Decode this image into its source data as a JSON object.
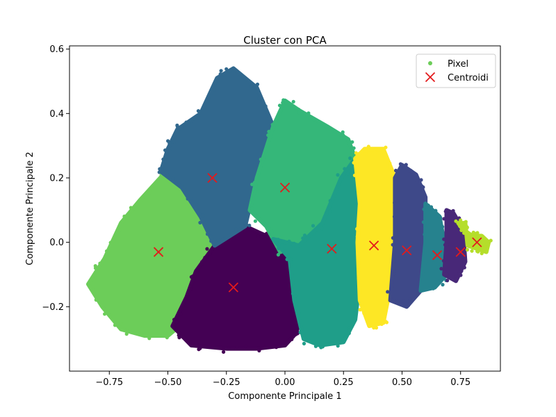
{
  "chart_data": {
    "type": "scatter",
    "title": "Cluster con PCA",
    "xlabel": "Componente Principale 1",
    "ylabel": "Componente Principale 2",
    "xlim": [
      -0.92,
      0.92
    ],
    "ylim": [
      -0.4,
      0.61
    ],
    "xticks": [
      -0.75,
      -0.5,
      -0.25,
      0.0,
      0.25,
      0.5,
      0.75
    ],
    "xtick_labels": [
      "−0.75",
      "−0.50",
      "−0.25",
      "0.00",
      "0.25",
      "0.50",
      "0.75"
    ],
    "yticks": [
      -0.2,
      0.0,
      0.2,
      0.4,
      0.6
    ],
    "ytick_labels": [
      "−0.2",
      "0.0",
      "0.2",
      "0.4",
      "0.6"
    ],
    "grid": false,
    "legend": {
      "placement": "upper-right",
      "entries": [
        {
          "label": "Pixel",
          "marker": "dot",
          "color": "#6ccd59"
        },
        {
          "label": "Centroidi",
          "marker": "x",
          "color": "#e31a1c"
        }
      ]
    },
    "clusters": [
      {
        "color": "#6ccd59",
        "polygon": [
          [
            -0.84,
            -0.13
          ],
          [
            -0.78,
            -0.2
          ],
          [
            -0.7,
            -0.27
          ],
          [
            -0.6,
            -0.29
          ],
          [
            -0.5,
            -0.29
          ],
          [
            -0.45,
            -0.26
          ],
          [
            -0.4,
            -0.17
          ],
          [
            -0.3,
            -0.01
          ],
          [
            -0.36,
            0.08
          ],
          [
            -0.44,
            0.17
          ],
          [
            -0.52,
            0.21
          ],
          [
            -0.62,
            0.13
          ],
          [
            -0.7,
            0.06
          ],
          [
            -0.77,
            -0.05
          ]
        ]
      },
      {
        "color": "#440154",
        "polygon": [
          [
            -0.48,
            -0.26
          ],
          [
            -0.42,
            -0.17
          ],
          [
            -0.38,
            -0.09
          ],
          [
            -0.3,
            -0.01
          ],
          [
            -0.24,
            0.03
          ],
          [
            -0.17,
            0.05
          ],
          [
            -0.05,
            0.01
          ],
          [
            0.03,
            -0.07
          ],
          [
            0.07,
            -0.18
          ],
          [
            0.05,
            -0.28
          ],
          [
            0.0,
            -0.32
          ],
          [
            -0.12,
            -0.33
          ],
          [
            -0.25,
            -0.33
          ],
          [
            -0.4,
            -0.32
          ]
        ]
      },
      {
        "color": "#31688e",
        "polygon": [
          [
            -0.53,
            0.22
          ],
          [
            -0.5,
            0.29
          ],
          [
            -0.46,
            0.35
          ],
          [
            -0.36,
            0.4
          ],
          [
            -0.29,
            0.51
          ],
          [
            -0.22,
            0.54
          ],
          [
            -0.12,
            0.48
          ],
          [
            -0.05,
            0.36
          ],
          [
            -0.12,
            0.2
          ],
          [
            -0.17,
            0.05
          ],
          [
            -0.3,
            -0.01
          ],
          [
            -0.36,
            0.08
          ],
          [
            -0.44,
            0.17
          ]
        ]
      },
      {
        "color": "#35b779",
        "polygon": [
          [
            -0.05,
            0.36
          ],
          [
            0.0,
            0.44
          ],
          [
            0.06,
            0.41
          ],
          [
            0.18,
            0.36
          ],
          [
            0.27,
            0.32
          ],
          [
            0.3,
            0.26
          ],
          [
            0.24,
            0.14
          ],
          [
            0.16,
            0.06
          ],
          [
            0.06,
            -0.01
          ],
          [
            -0.02,
            -0.03
          ],
          [
            -0.08,
            0.05
          ],
          [
            -0.15,
            0.1
          ],
          [
            -0.12,
            0.2
          ]
        ]
      },
      {
        "color": "#1f9e89",
        "polygon": [
          [
            -0.05,
            0.01
          ],
          [
            0.02,
            -0.05
          ],
          [
            0.04,
            -0.18
          ],
          [
            0.08,
            -0.3
          ],
          [
            0.15,
            -0.32
          ],
          [
            0.25,
            -0.31
          ],
          [
            0.3,
            -0.24
          ],
          [
            0.32,
            -0.12
          ],
          [
            0.31,
            0.0
          ],
          [
            0.32,
            0.12
          ],
          [
            0.3,
            0.26
          ],
          [
            0.24,
            0.2
          ],
          [
            0.16,
            0.06
          ],
          [
            0.06,
            -0.01
          ]
        ]
      },
      {
        "color": "#fde725",
        "polygon": [
          [
            0.31,
            0.0
          ],
          [
            0.32,
            0.12
          ],
          [
            0.3,
            0.26
          ],
          [
            0.34,
            0.29
          ],
          [
            0.42,
            0.29
          ],
          [
            0.47,
            0.2
          ],
          [
            0.47,
            0.0
          ],
          [
            0.45,
            -0.14
          ],
          [
            0.42,
            -0.25
          ],
          [
            0.36,
            -0.26
          ],
          [
            0.32,
            -0.18
          ]
        ]
      },
      {
        "color": "#3e4989",
        "polygon": [
          [
            0.45,
            -0.18
          ],
          [
            0.47,
            0.0
          ],
          [
            0.47,
            0.2
          ],
          [
            0.5,
            0.24
          ],
          [
            0.56,
            0.21
          ],
          [
            0.6,
            0.14
          ],
          [
            0.6,
            0.02
          ],
          [
            0.58,
            -0.15
          ],
          [
            0.52,
            -0.2
          ]
        ]
      },
      {
        "color": "#26828e",
        "polygon": [
          [
            0.58,
            -0.15
          ],
          [
            0.6,
            0.0
          ],
          [
            0.6,
            0.12
          ],
          [
            0.66,
            0.08
          ],
          [
            0.68,
            0.0
          ],
          [
            0.69,
            -0.1
          ],
          [
            0.64,
            -0.14
          ]
        ]
      },
      {
        "color": "#482878",
        "polygon": [
          [
            0.68,
            -0.1
          ],
          [
            0.69,
            0.0
          ],
          [
            0.69,
            0.1
          ],
          [
            0.72,
            0.09
          ],
          [
            0.76,
            0.04
          ],
          [
            0.77,
            -0.06
          ],
          [
            0.73,
            -0.12
          ]
        ]
      },
      {
        "color": "#b5de2b",
        "polygon": [
          [
            0.74,
            0.06
          ],
          [
            0.76,
            0.04
          ],
          [
            0.8,
            0.02
          ],
          [
            0.84,
            0.02
          ],
          [
            0.87,
            0.0
          ],
          [
            0.86,
            -0.03
          ],
          [
            0.82,
            -0.02
          ],
          [
            0.78,
            -0.01
          ],
          [
            0.77,
            0.06
          ]
        ]
      }
    ],
    "centroids": [
      {
        "x": -0.54,
        "y": -0.03
      },
      {
        "x": -0.22,
        "y": -0.14
      },
      {
        "x": -0.31,
        "y": 0.2
      },
      {
        "x": 0.0,
        "y": 0.17
      },
      {
        "x": 0.2,
        "y": -0.02
      },
      {
        "x": 0.38,
        "y": -0.01
      },
      {
        "x": 0.52,
        "y": -0.025
      },
      {
        "x": 0.65,
        "y": -0.04
      },
      {
        "x": 0.75,
        "y": -0.03
      },
      {
        "x": 0.82,
        "y": 0.0
      }
    ]
  }
}
